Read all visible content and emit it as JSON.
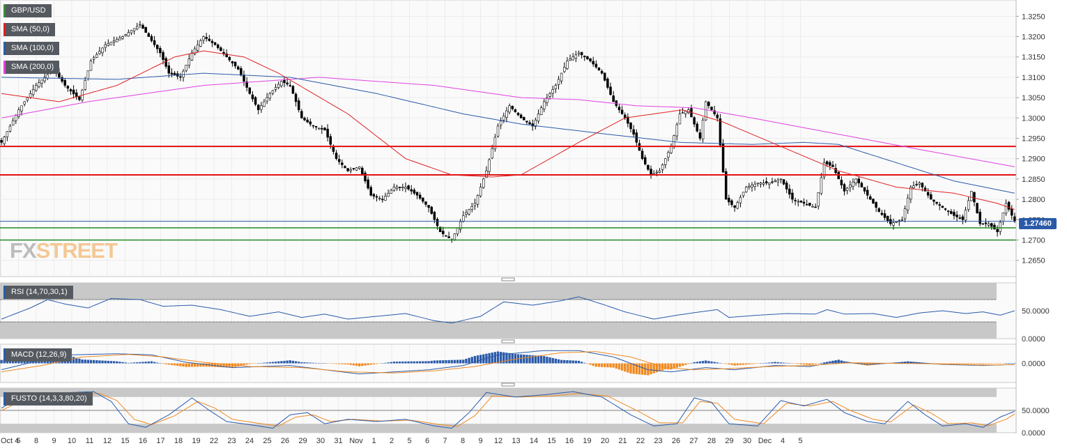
{
  "instrument": "GBP/USD",
  "legend": {
    "main": [
      {
        "label": "GBP/USD",
        "color": "#3a8a3a"
      },
      {
        "label": "SMA (50,0)",
        "color": "#e02020"
      },
      {
        "label": "SMA (100,0)",
        "color": "#2a5aa8"
      },
      {
        "label": "SMA (200,0)",
        "color": "#e040e0"
      }
    ],
    "rsi": {
      "label": "RSI (14,70,30,1)",
      "color": "#2a5aa8"
    },
    "macd": {
      "label": "MACD (12,26,9)",
      "color": "#2a5aa8"
    },
    "fusto": {
      "label": "FUSTO (14,3,3,80,20)",
      "color": "#2a5aa8"
    }
  },
  "watermark": {
    "fx": "FX",
    "street": "STREET",
    "fx_color": "#8a8a8a",
    "street_color": "#f0a040"
  },
  "last_price_label": "1.27460",
  "colors": {
    "up_candle": "#ffffff",
    "down_candle": "#000000",
    "wick": "#000000",
    "sma50": "#e02020",
    "sma100": "#2a5aa8",
    "sma200": "#e040e0",
    "support_resistance": "#e01010",
    "green_levels": "#1e8a1e",
    "rsi": "#2a5aa8",
    "macd": "#2a5aa8",
    "signal": "#f08a20",
    "hist_pos": "#2a5aa8",
    "hist_neg": "#f08a20"
  },
  "chart_data": {
    "type": "candlestick",
    "title": "GBP/USD",
    "x_tick_labels": [
      "Oct 4",
      "5",
      "8",
      "9",
      "10",
      "11",
      "12",
      "15",
      "16",
      "17",
      "18",
      "19",
      "22",
      "23",
      "24",
      "25",
      "26",
      "29",
      "30",
      "31",
      "Nov",
      "1",
      "2",
      "5",
      "6",
      "7",
      "8",
      "9",
      "12",
      "13",
      "14",
      "15",
      "16",
      "19",
      "20",
      "21",
      "22",
      "23",
      "26",
      "27",
      "28",
      "29",
      "30",
      "Dec",
      "4",
      "5"
    ],
    "price_axis": {
      "ylim": [
        1.261,
        1.329
      ],
      "tick_labels": [
        "1.3250",
        "1.3200",
        "1.3150",
        "1.3100",
        "1.3050",
        "1.3000",
        "1.2950",
        "1.2900",
        "1.2850",
        "1.2800",
        "1.2750",
        "1.2700",
        "1.2650"
      ]
    },
    "horizontal_levels": {
      "red": [
        1.293,
        1.286
      ],
      "green": [
        1.273,
        1.27
      ],
      "last": 1.2746
    },
    "price_anchors": [
      [
        0,
        1.294
      ],
      [
        6,
        1.302
      ],
      [
        12,
        1.308
      ],
      [
        18,
        1.312
      ],
      [
        22,
        1.308
      ],
      [
        27,
        1.3045
      ],
      [
        31,
        1.314
      ],
      [
        36,
        1.318
      ],
      [
        42,
        1.32
      ],
      [
        48,
        1.323
      ],
      [
        52,
        1.319
      ],
      [
        55,
        1.316
      ],
      [
        58,
        1.311
      ],
      [
        62,
        1.31
      ],
      [
        66,
        1.316
      ],
      [
        70,
        1.32
      ],
      [
        74,
        1.318
      ],
      [
        78,
        1.315
      ],
      [
        82,
        1.312
      ],
      [
        86,
        1.306
      ],
      [
        89,
        1.302
      ],
      [
        93,
        1.306
      ],
      [
        97,
        1.309
      ],
      [
        100,
        1.308
      ],
      [
        104,
        1.3
      ],
      [
        108,
        1.298
      ],
      [
        112,
        1.297
      ],
      [
        116,
        1.29
      ],
      [
        120,
        1.287
      ],
      [
        124,
        1.288
      ],
      [
        128,
        1.281
      ],
      [
        132,
        1.28
      ],
      [
        136,
        1.283
      ],
      [
        140,
        1.283
      ],
      [
        144,
        1.281
      ],
      [
        148,
        1.278
      ],
      [
        152,
        1.272
      ],
      [
        156,
        1.27
      ],
      [
        160,
        1.276
      ],
      [
        164,
        1.279
      ],
      [
        168,
        1.287
      ],
      [
        172,
        1.298
      ],
      [
        176,
        1.303
      ],
      [
        180,
        1.3
      ],
      [
        184,
        1.298
      ],
      [
        188,
        1.304
      ],
      [
        192,
        1.308
      ],
      [
        196,
        1.314
      ],
      [
        200,
        1.316
      ],
      [
        204,
        1.314
      ],
      [
        208,
        1.311
      ],
      [
        212,
        1.304
      ],
      [
        216,
        1.3
      ],
      [
        219,
        1.296
      ],
      [
        222,
        1.29
      ],
      [
        225,
        1.286
      ],
      [
        228,
        1.287
      ],
      [
        232,
        1.293
      ],
      [
        235,
        1.301
      ],
      [
        238,
        1.302
      ],
      [
        242,
        1.295
      ],
      [
        244,
        1.304
      ],
      [
        248,
        1.3
      ],
      [
        251,
        1.28
      ],
      [
        254,
        1.278
      ],
      [
        258,
        1.283
      ],
      [
        262,
        1.284
      ],
      [
        266,
        1.284
      ],
      [
        270,
        1.285
      ],
      [
        274,
        1.28
      ],
      [
        278,
        1.279
      ],
      [
        282,
        1.278
      ],
      [
        285,
        1.289
      ],
      [
        288,
        1.288
      ],
      [
        292,
        1.282
      ],
      [
        296,
        1.285
      ],
      [
        300,
        1.281
      ],
      [
        304,
        1.277
      ],
      [
        308,
        1.274
      ],
      [
        312,
        1.275
      ],
      [
        315,
        1.283
      ],
      [
        318,
        1.284
      ],
      [
        322,
        1.28
      ],
      [
        326,
        1.278
      ],
      [
        330,
        1.276
      ],
      [
        333,
        1.275
      ],
      [
        336,
        1.282
      ],
      [
        339,
        1.274
      ],
      [
        342,
        1.274
      ],
      [
        345,
        1.272
      ],
      [
        348,
        1.279
      ],
      [
        351,
        1.2746
      ]
    ],
    "sma50_anchors": [
      [
        0,
        1.306
      ],
      [
        20,
        1.304
      ],
      [
        40,
        1.308
      ],
      [
        60,
        1.315
      ],
      [
        70,
        1.3165
      ],
      [
        84,
        1.315
      ],
      [
        96,
        1.311
      ],
      [
        120,
        1.301
      ],
      [
        140,
        1.29
      ],
      [
        156,
        1.286
      ],
      [
        170,
        1.2855
      ],
      [
        180,
        1.286
      ],
      [
        200,
        1.294
      ],
      [
        216,
        1.3
      ],
      [
        236,
        1.302
      ],
      [
        250,
        1.299
      ],
      [
        270,
        1.293
      ],
      [
        290,
        1.287
      ],
      [
        310,
        1.283
      ],
      [
        330,
        1.2815
      ],
      [
        345,
        1.279
      ],
      [
        351,
        1.2775
      ]
    ],
    "sma100_anchors": [
      [
        0,
        1.31
      ],
      [
        40,
        1.3095
      ],
      [
        70,
        1.311
      ],
      [
        100,
        1.31
      ],
      [
        130,
        1.306
      ],
      [
        160,
        1.301
      ],
      [
        180,
        1.2985
      ],
      [
        210,
        1.296
      ],
      [
        235,
        1.294
      ],
      [
        260,
        1.2935
      ],
      [
        278,
        1.294
      ],
      [
        290,
        1.2935
      ],
      [
        310,
        1.289
      ],
      [
        330,
        1.2845
      ],
      [
        351,
        1.2815
      ]
    ],
    "sma200_anchors": [
      [
        0,
        1.3
      ],
      [
        30,
        1.304
      ],
      [
        70,
        1.308
      ],
      [
        110,
        1.31
      ],
      [
        150,
        1.308
      ],
      [
        180,
        1.305
      ],
      [
        200,
        1.3045
      ],
      [
        220,
        1.303
      ],
      [
        240,
        1.3025
      ],
      [
        260,
        1.3
      ],
      [
        290,
        1.296
      ],
      [
        320,
        1.292
      ],
      [
        351,
        1.288
      ]
    ],
    "rsi": {
      "ylim": [
        0,
        100
      ],
      "tick_labels": [
        "50.0000",
        "0.0000"
      ],
      "overbought": 70,
      "oversold": 30,
      "anchors": [
        [
          0,
          35
        ],
        [
          10,
          55
        ],
        [
          16,
          70
        ],
        [
          22,
          62
        ],
        [
          30,
          55
        ],
        [
          38,
          72
        ],
        [
          48,
          70
        ],
        [
          56,
          58
        ],
        [
          66,
          60
        ],
        [
          76,
          52
        ],
        [
          86,
          40
        ],
        [
          96,
          48
        ],
        [
          104,
          38
        ],
        [
          112,
          44
        ],
        [
          120,
          35
        ],
        [
          130,
          40
        ],
        [
          140,
          45
        ],
        [
          150,
          32
        ],
        [
          156,
          28
        ],
        [
          166,
          40
        ],
        [
          174,
          66
        ],
        [
          184,
          60
        ],
        [
          194,
          68
        ],
        [
          200,
          75
        ],
        [
          208,
          62
        ],
        [
          216,
          48
        ],
        [
          226,
          35
        ],
        [
          234,
          42
        ],
        [
          242,
          48
        ],
        [
          248,
          52
        ],
        [
          252,
          38
        ],
        [
          262,
          42
        ],
        [
          272,
          45
        ],
        [
          282,
          44
        ],
        [
          286,
          52
        ],
        [
          292,
          44
        ],
        [
          302,
          45
        ],
        [
          310,
          38
        ],
        [
          318,
          46
        ],
        [
          326,
          50
        ],
        [
          334,
          45
        ],
        [
          340,
          48
        ],
        [
          346,
          42
        ],
        [
          351,
          50
        ]
      ]
    },
    "macd": {
      "ylim": [
        -0.009,
        0.009
      ],
      "tick_labels": [
        "0.0000"
      ],
      "macd_anchors": [
        [
          0,
          -0.003
        ],
        [
          12,
          0.001
        ],
        [
          24,
          0.004
        ],
        [
          40,
          0.0045
        ],
        [
          52,
          0.004
        ],
        [
          64,
          0.0005
        ],
        [
          80,
          -0.002
        ],
        [
          100,
          -0.001
        ],
        [
          112,
          -0.003
        ],
        [
          124,
          -0.005
        ],
        [
          136,
          -0.004
        ],
        [
          148,
          -0.003
        ],
        [
          160,
          -0.001
        ],
        [
          172,
          0.004
        ],
        [
          188,
          0.006
        ],
        [
          200,
          0.006
        ],
        [
          212,
          0.003
        ],
        [
          224,
          -0.003
        ],
        [
          232,
          -0.004
        ],
        [
          244,
          -0.002
        ],
        [
          254,
          -0.003
        ],
        [
          268,
          -0.001
        ],
        [
          280,
          -0.0015
        ],
        [
          290,
          0.001
        ],
        [
          300,
          -0.0005
        ],
        [
          314,
          0.0005
        ],
        [
          326,
          -0.0005
        ],
        [
          340,
          -0.001
        ],
        [
          351,
          -0.0005
        ]
      ],
      "signal_anchors": [
        [
          0,
          -0.004
        ],
        [
          14,
          -0.001
        ],
        [
          28,
          0.003
        ],
        [
          44,
          0.0042
        ],
        [
          56,
          0.003
        ],
        [
          70,
          0.0005
        ],
        [
          86,
          -0.0015
        ],
        [
          104,
          -0.002
        ],
        [
          120,
          -0.004
        ],
        [
          136,
          -0.0045
        ],
        [
          150,
          -0.0035
        ],
        [
          164,
          -0.0015
        ],
        [
          178,
          0.002
        ],
        [
          194,
          0.005
        ],
        [
          206,
          0.0055
        ],
        [
          218,
          0.003
        ],
        [
          230,
          -0.002
        ],
        [
          240,
          -0.003
        ],
        [
          252,
          -0.0025
        ],
        [
          266,
          -0.0015
        ],
        [
          280,
          -0.001
        ],
        [
          294,
          0.0003
        ],
        [
          308,
          0.0
        ],
        [
          322,
          -0.0002
        ],
        [
          340,
          -0.0008
        ],
        [
          351,
          -0.0006
        ]
      ]
    },
    "fusto": {
      "ylim": [
        0,
        100
      ],
      "tick_labels": [
        "50.0000",
        "0.0000"
      ],
      "overbought": 80,
      "oversold": 20,
      "k_anchors": [
        [
          0,
          55
        ],
        [
          8,
          85
        ],
        [
          16,
          70
        ],
        [
          24,
          90
        ],
        [
          32,
          92
        ],
        [
          38,
          70
        ],
        [
          44,
          20
        ],
        [
          50,
          12
        ],
        [
          58,
          40
        ],
        [
          66,
          78
        ],
        [
          72,
          50
        ],
        [
          78,
          25
        ],
        [
          86,
          18
        ],
        [
          94,
          10
        ],
        [
          100,
          40
        ],
        [
          106,
          45
        ],
        [
          112,
          20
        ],
        [
          120,
          30
        ],
        [
          130,
          25
        ],
        [
          140,
          30
        ],
        [
          150,
          15
        ],
        [
          156,
          10
        ],
        [
          162,
          45
        ],
        [
          168,
          90
        ],
        [
          178,
          80
        ],
        [
          188,
          85
        ],
        [
          198,
          92
        ],
        [
          208,
          80
        ],
        [
          218,
          40
        ],
        [
          226,
          15
        ],
        [
          234,
          20
        ],
        [
          240,
          78
        ],
        [
          246,
          68
        ],
        [
          252,
          20
        ],
        [
          262,
          15
        ],
        [
          270,
          72
        ],
        [
          278,
          60
        ],
        [
          286,
          75
        ],
        [
          292,
          45
        ],
        [
          300,
          25
        ],
        [
          306,
          20
        ],
        [
          314,
          70
        ],
        [
          320,
          40
        ],
        [
          326,
          15
        ],
        [
          334,
          20
        ],
        [
          340,
          12
        ],
        [
          346,
          35
        ],
        [
          351,
          48
        ]
      ],
      "d_anchors": [
        [
          0,
          50
        ],
        [
          10,
          80
        ],
        [
          18,
          72
        ],
        [
          26,
          86
        ],
        [
          34,
          88
        ],
        [
          40,
          72
        ],
        [
          46,
          30
        ],
        [
          52,
          18
        ],
        [
          60,
          38
        ],
        [
          68,
          70
        ],
        [
          74,
          55
        ],
        [
          80,
          30
        ],
        [
          88,
          22
        ],
        [
          96,
          15
        ],
        [
          102,
          35
        ],
        [
          108,
          40
        ],
        [
          114,
          25
        ],
        [
          122,
          30
        ],
        [
          132,
          26
        ],
        [
          142,
          28
        ],
        [
          152,
          18
        ],
        [
          158,
          14
        ],
        [
          164,
          38
        ],
        [
          170,
          82
        ],
        [
          180,
          80
        ],
        [
          190,
          82
        ],
        [
          200,
          88
        ],
        [
          210,
          82
        ],
        [
          220,
          50
        ],
        [
          228,
          22
        ],
        [
          236,
          22
        ],
        [
          242,
          70
        ],
        [
          248,
          66
        ],
        [
          254,
          30
        ],
        [
          264,
          20
        ],
        [
          272,
          66
        ],
        [
          280,
          60
        ],
        [
          288,
          70
        ],
        [
          294,
          50
        ],
        [
          302,
          30
        ],
        [
          308,
          24
        ],
        [
          316,
          62
        ],
        [
          322,
          44
        ],
        [
          328,
          20
        ],
        [
          336,
          22
        ],
        [
          342,
          16
        ],
        [
          348,
          30
        ],
        [
          351,
          42
        ]
      ]
    }
  }
}
